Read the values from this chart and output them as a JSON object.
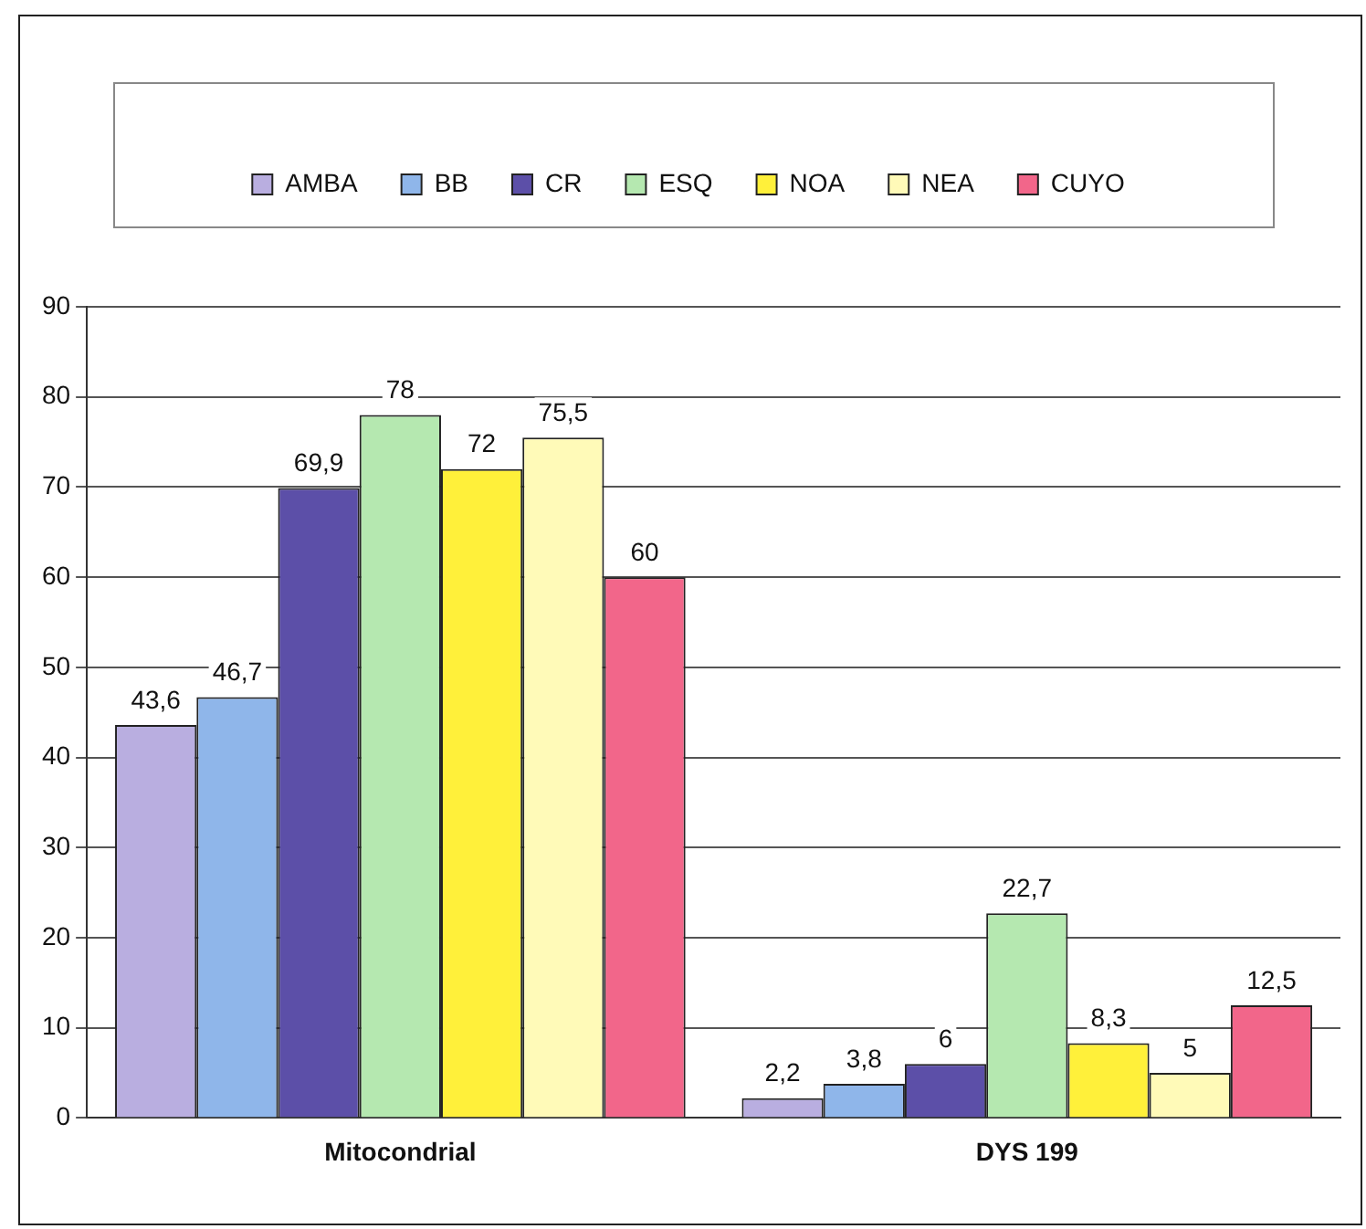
{
  "chart_data": {
    "type": "bar",
    "categories": [
      "Mitocondrial",
      "DYS 199"
    ],
    "series": [
      {
        "name": "AMBA",
        "color": "#b9aee0",
        "values": [
          43.6,
          2.2
        ],
        "value_labels": [
          "43,6",
          "2,2"
        ]
      },
      {
        "name": "BB",
        "color": "#8fb6ea",
        "values": [
          46.7,
          3.8
        ],
        "value_labels": [
          "46,7",
          "3,8"
        ]
      },
      {
        "name": "CR",
        "color": "#5c4fa8",
        "values": [
          69.9,
          6
        ],
        "value_labels": [
          "69,9",
          "6"
        ]
      },
      {
        "name": "ESQ",
        "color": "#b5e8b0",
        "values": [
          78,
          22.7
        ],
        "value_labels": [
          "78",
          "22,7"
        ]
      },
      {
        "name": "NOA",
        "color": "#fff03a",
        "values": [
          72,
          8.3
        ],
        "value_labels": [
          "72",
          "8,3"
        ]
      },
      {
        "name": "NEA",
        "color": "#fffab8",
        "values": [
          75.5,
          5
        ],
        "value_labels": [
          "75,5",
          "5"
        ]
      },
      {
        "name": "CUYO",
        "color": "#f2668a",
        "values": [
          60,
          12.5
        ],
        "value_labels": [
          "60",
          "12,5"
        ]
      }
    ],
    "ylim": [
      0,
      90
    ],
    "yticks": [
      0,
      10,
      20,
      30,
      40,
      50,
      60,
      70,
      80,
      90
    ],
    "grid": "y",
    "legend": "top"
  }
}
